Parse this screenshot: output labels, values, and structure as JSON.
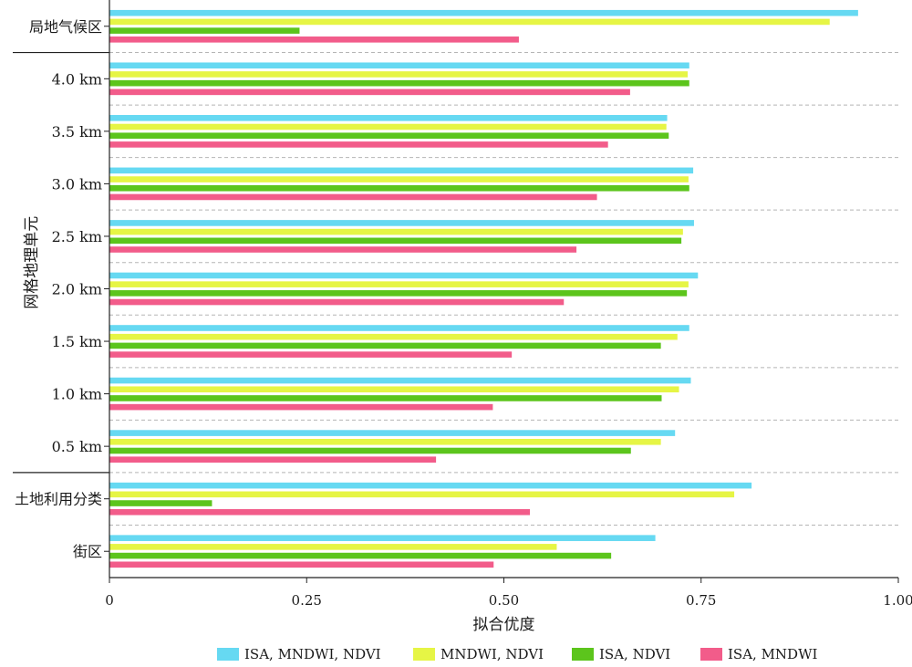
{
  "chart_data": {
    "type": "bar",
    "orientation": "horizontal",
    "xlabel": "拟合优度",
    "xlim": [
      0,
      1.0
    ],
    "xticks": [
      "0",
      "0.25",
      "0.50",
      "0.75",
      "1.00"
    ],
    "xtick_values": [
      0,
      0.25,
      0.5,
      0.75,
      1.0
    ],
    "grid": "horizontal dashed separators between categories",
    "legend_position": "bottom",
    "groups": [
      {
        "name": "",
        "categories": [
          "局地气候区"
        ]
      },
      {
        "name": "网格地理单元",
        "categories": [
          "4.0 km",
          "3.5 km",
          "3.0 km",
          "2.5 km",
          "2.0 km",
          "1.5 km",
          "1.0 km",
          "0.5 km"
        ]
      },
      {
        "name": "",
        "categories": [
          "土地利用分类",
          "街区"
        ]
      }
    ],
    "categories": [
      "局地气候区",
      "4.0 km",
      "3.5 km",
      "3.0 km",
      "2.5 km",
      "2.0 km",
      "1.5 km",
      "1.0 km",
      "0.5 km",
      "土地利用分类",
      "街区"
    ],
    "series": [
      {
        "name": "ISA, MNDWI, NDVI",
        "color": "#66d9f2",
        "values": [
          0.949,
          0.735,
          0.707,
          0.74,
          0.741,
          0.746,
          0.735,
          0.737,
          0.717,
          0.814,
          0.692
        ]
      },
      {
        "name": "MNDWI, NDVI",
        "color": "#e6f545",
        "values": [
          0.913,
          0.733,
          0.706,
          0.734,
          0.727,
          0.734,
          0.72,
          0.722,
          0.699,
          0.792,
          0.567
        ]
      },
      {
        "name": "ISA, NDVI",
        "color": "#5cc51c",
        "values": [
          0.241,
          0.735,
          0.709,
          0.735,
          0.725,
          0.732,
          0.699,
          0.7,
          0.661,
          0.13,
          0.636
        ]
      },
      {
        "name": "ISA, MNDWI",
        "color": "#f25c8a",
        "values": [
          0.519,
          0.66,
          0.632,
          0.618,
          0.592,
          0.576,
          0.51,
          0.486,
          0.414,
          0.533,
          0.487
        ]
      }
    ]
  }
}
